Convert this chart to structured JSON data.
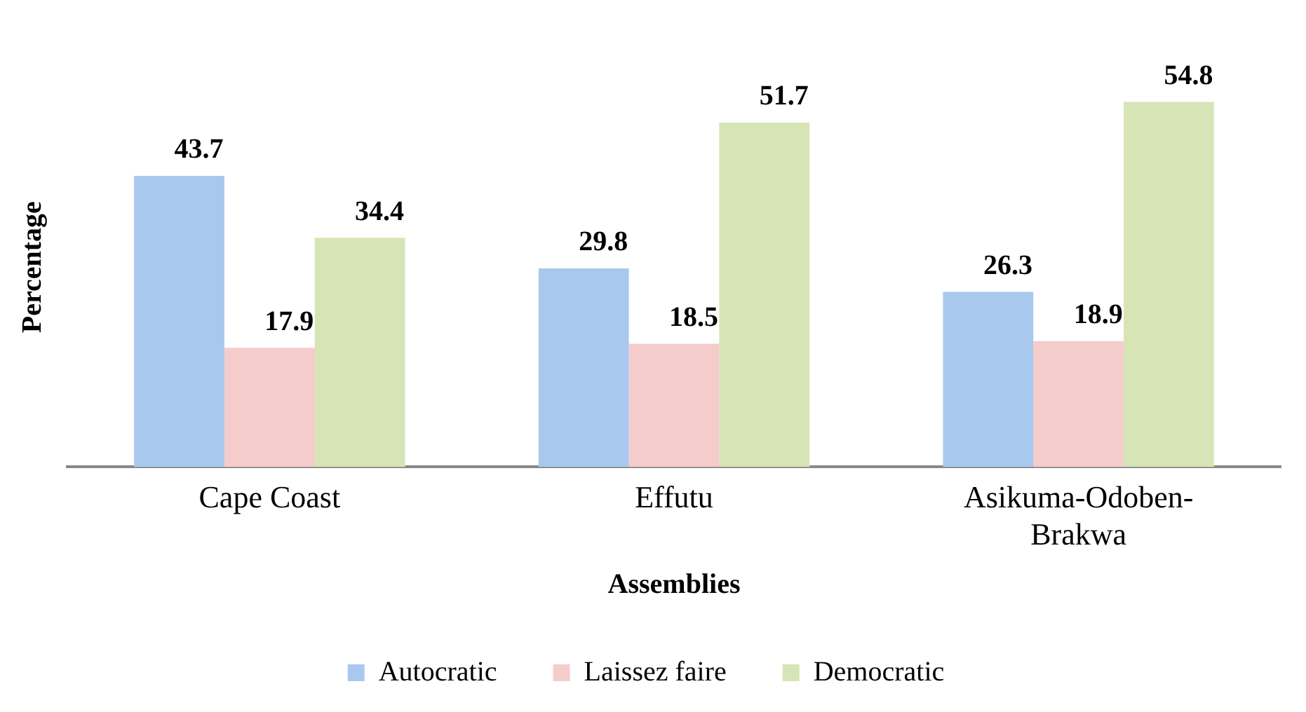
{
  "chart_data": {
    "type": "bar",
    "xlabel": "Assemblies",
    "ylabel": "Percentage",
    "categories": [
      "Cape Coast",
      "Effutu",
      "Asikuma-Odoben-Brakwa"
    ],
    "series": [
      {
        "name": "Autocratic",
        "color": "#a9c8ee",
        "values": [
          43.7,
          29.8,
          26.3
        ]
      },
      {
        "name": "Laissez faire",
        "color": "#f4cccc",
        "values": [
          17.9,
          18.5,
          18.9
        ]
      },
      {
        "name": "Democratic",
        "color": "#d7e4b5",
        "values": [
          34.4,
          51.7,
          54.8
        ]
      }
    ],
    "data_labels": true,
    "grid": false,
    "legend": "bottom"
  }
}
